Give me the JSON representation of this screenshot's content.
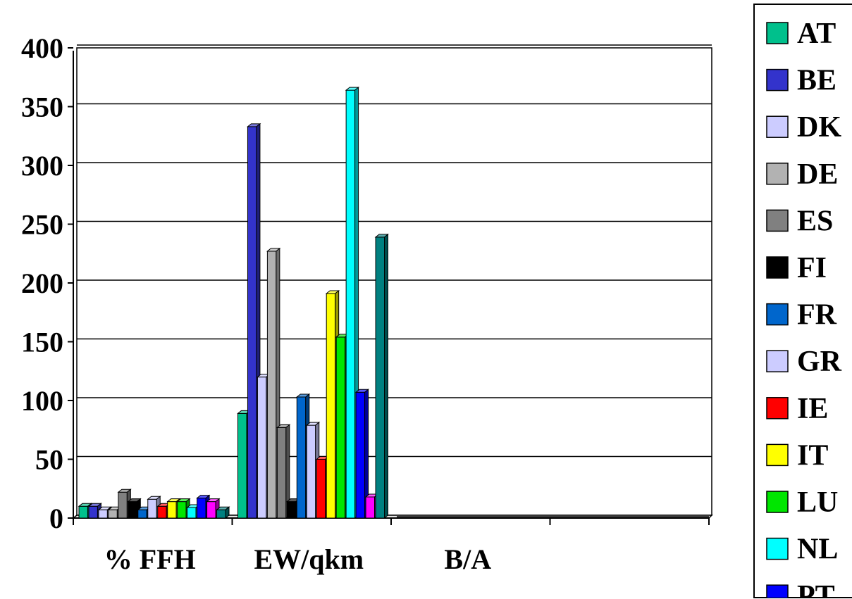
{
  "chart_data": {
    "type": "bar",
    "title": "",
    "xlabel": "",
    "ylabel": "",
    "ylim": [
      0,
      400
    ],
    "yticks": [
      0,
      50,
      100,
      150,
      200,
      250,
      300,
      350,
      400
    ],
    "categories": [
      "% FFH",
      "EW/qkm",
      "B/A",
      ""
    ],
    "grid": true,
    "legend_position": "right",
    "series": [
      {
        "name": "AT",
        "color": "#00C08C",
        "values": [
          10,
          89,
          null,
          null
        ]
      },
      {
        "name": "BE",
        "color": "#3333CC",
        "values": [
          10,
          333,
          null,
          null
        ]
      },
      {
        "name": "DK",
        "color": "#CCCCFF",
        "values": [
          7,
          120,
          null,
          null
        ]
      },
      {
        "name": "DE",
        "color": "#B2B2B2",
        "values": [
          7,
          227,
          null,
          null
        ]
      },
      {
        "name": "ES",
        "color": "#808080",
        "values": [
          22,
          77,
          null,
          null
        ]
      },
      {
        "name": "FI",
        "color": "#000000",
        "values": [
          14,
          14,
          null,
          null
        ]
      },
      {
        "name": "FR",
        "color": "#0066CC",
        "values": [
          7,
          103,
          null,
          null
        ]
      },
      {
        "name": "GR",
        "color": "#CCCCFF",
        "values": [
          16,
          79,
          null,
          null
        ]
      },
      {
        "name": "IE",
        "color": "#FF0000",
        "values": [
          10,
          50,
          null,
          null
        ]
      },
      {
        "name": "IT",
        "color": "#FFFF00",
        "values": [
          14,
          191,
          null,
          null
        ]
      },
      {
        "name": "LU",
        "color": "#00E600",
        "values": [
          14,
          154,
          null,
          null
        ]
      },
      {
        "name": "NL",
        "color": "#00FFFF",
        "values": [
          9,
          364,
          null,
          null
        ]
      },
      {
        "name": "PT",
        "color": "#0000FF",
        "values": [
          17,
          107,
          null,
          null
        ]
      },
      {
        "name": "",
        "color": "#FF00FF",
        "values": [
          14,
          18,
          null,
          null
        ]
      },
      {
        "name": "",
        "color": "#008080",
        "values": [
          7,
          239,
          null,
          null
        ]
      }
    ]
  }
}
